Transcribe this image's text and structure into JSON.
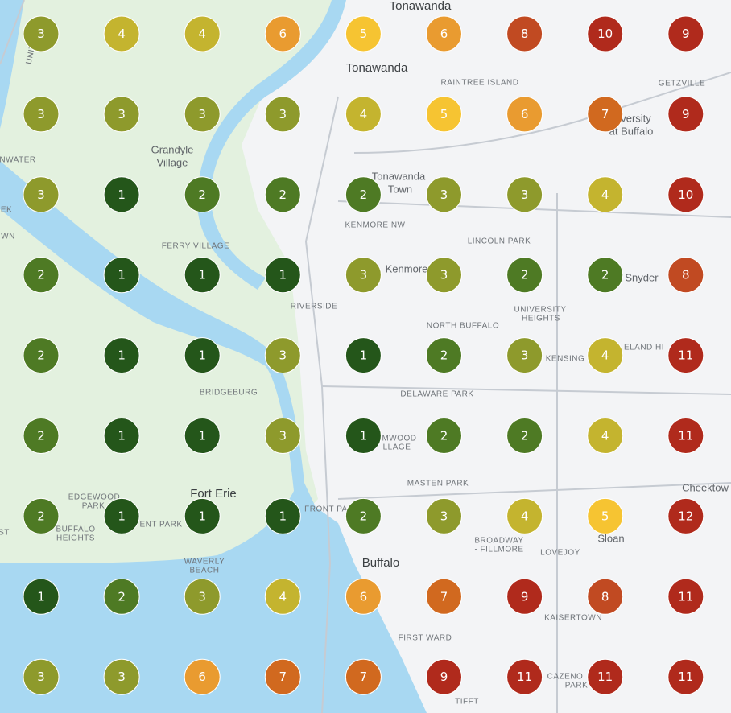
{
  "map": {
    "places": [
      "Tonawanda",
      "Tonawanda",
      "RAINTREE ISLAND",
      "GETZVILLE",
      "versity",
      "at Buffalo",
      "Grandyle",
      "Village",
      "NWATER",
      "Tonawanda",
      "Town",
      "KENMORE NW",
      "LINCOLN PARK",
      "FERRY VILLAGE",
      "Kenmore",
      "Snyder",
      "RIVERSIDE",
      "UNIVERSITY",
      "HEIGHTS",
      "NORTH BUFFALO",
      "KENSING",
      "ELAND HI",
      "BRIDGEBURG",
      "DELAWARE PARK",
      "EDGEWOOD",
      "PARK",
      "Fort Erie",
      "MASTEN PARK",
      "Cheektow",
      "BUFFALO",
      "HEIGHTS",
      "ENT PARK",
      "FRONT PA",
      "WAVERLY",
      "BEACH",
      "Buffalo",
      "BROADWAY",
      "- FILLMORE",
      "LOVEJOY",
      "Sloan",
      "KAISERTOWN",
      "FIRST WARD",
      "CAZENO",
      "PARK",
      "TIFFT",
      "MWOOD",
      "LLAGE",
      "UNITED",
      "EK",
      "WN",
      "ST"
    ],
    "grid": [
      [
        3,
        4,
        4,
        6,
        5,
        6,
        8,
        10,
        9
      ],
      [
        3,
        3,
        3,
        3,
        4,
        5,
        6,
        7,
        9
      ],
      [
        3,
        1,
        2,
        2,
        2,
        3,
        3,
        4,
        10
      ],
      [
        2,
        1,
        1,
        1,
        3,
        3,
        2,
        2,
        8
      ],
      [
        2,
        1,
        1,
        3,
        1,
        2,
        3,
        4,
        11
      ],
      [
        2,
        1,
        1,
        3,
        1,
        2,
        2,
        4,
        11
      ],
      [
        2,
        1,
        1,
        1,
        2,
        3,
        4,
        5,
        12
      ],
      [
        1,
        2,
        3,
        4,
        6,
        7,
        9,
        8,
        11
      ],
      [
        3,
        3,
        6,
        7,
        7,
        9,
        11,
        11,
        11
      ]
    ],
    "level_colors": [
      "#24561a",
      "#4e7a24",
      "#8e9a2c",
      "#c4b42f",
      "#f6c432",
      "#e99b30",
      "#d1691f",
      "#c14a22",
      "#b02a1c",
      "#b02a1c",
      "#b02a1c",
      "#b02a1c"
    ]
  }
}
